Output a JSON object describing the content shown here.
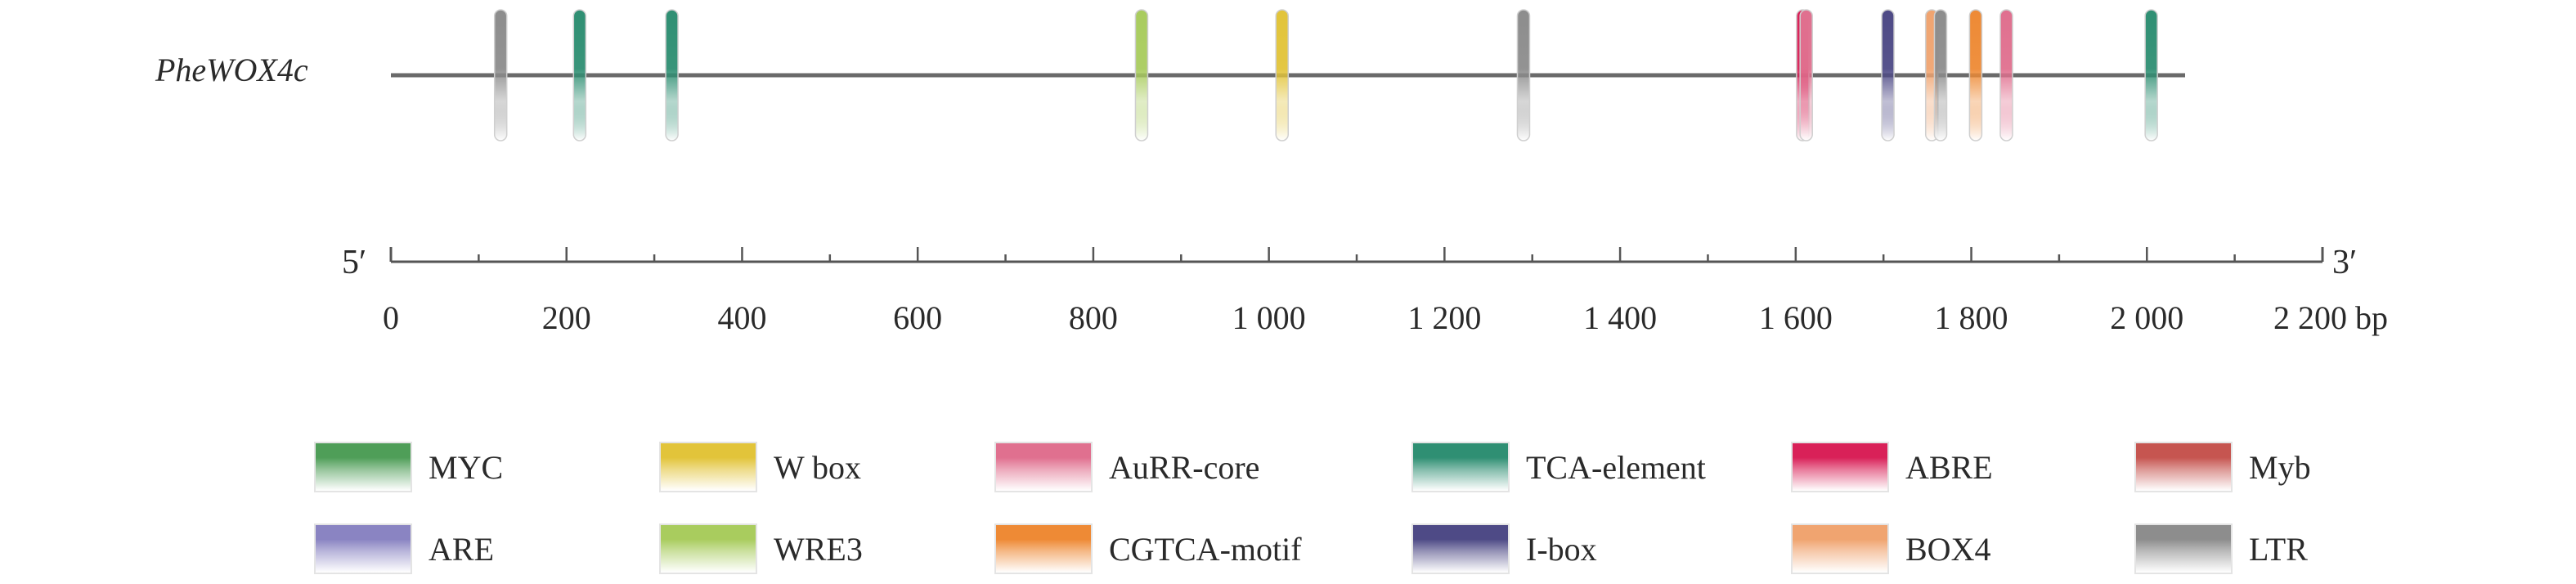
{
  "gene": {
    "name": "PheWOX4c"
  },
  "axis": {
    "five_prime": "5′",
    "three_prime": "3′",
    "min": 0,
    "max": 2200,
    "tick_step": 100,
    "tick_labels": [
      "0",
      "200",
      "400",
      "600",
      "800",
      "1 000",
      "1 200",
      "1 400",
      "1 600",
      "1 800",
      "2 000",
      "2 200 bp"
    ],
    "label_values": [
      0,
      200,
      400,
      600,
      800,
      1000,
      1200,
      1400,
      1600,
      1800,
      2000,
      2200
    ]
  },
  "chart_data": {
    "type": "gene-element-map",
    "sequence_length": 2050,
    "elements": [
      {
        "type": "LTR",
        "position": 125
      },
      {
        "type": "TCA-element",
        "position": 215
      },
      {
        "type": "TCA-element",
        "position": 320
      },
      {
        "type": "WRE3",
        "position": 855
      },
      {
        "type": "W box",
        "position": 1015
      },
      {
        "type": "LTR",
        "position": 1290
      },
      {
        "type": "ABRE",
        "position": 1608
      },
      {
        "type": "AuRR-core",
        "position": 1612
      },
      {
        "type": "I-box",
        "position": 1705
      },
      {
        "type": "BOX4",
        "position": 1755
      },
      {
        "type": "LTR",
        "position": 1765
      },
      {
        "type": "CGTCA-motif",
        "position": 1805
      },
      {
        "type": "AuRR-core",
        "position": 1840
      },
      {
        "type": "TCA-element",
        "position": 2005
      }
    ]
  },
  "legend": [
    {
      "name": "MYC",
      "color": "#4f9e58"
    },
    {
      "name": "W box",
      "color": "#e2c43a"
    },
    {
      "name": "AuRR-core",
      "color": "#e0708f"
    },
    {
      "name": "TCA-element",
      "color": "#2f8f73"
    },
    {
      "name": "ABRE",
      "color": "#d92158"
    },
    {
      "name": "Myb",
      "color": "#c65550"
    },
    {
      "name": "ARE",
      "color": "#8a84c2"
    },
    {
      "name": "WRE3",
      "color": "#a9cc5e"
    },
    {
      "name": "CGTCA-motif",
      "color": "#ee8a35"
    },
    {
      "name": "I-box",
      "color": "#4e4a86"
    },
    {
      "name": "BOX4",
      "color": "#f0a470"
    },
    {
      "name": "LTR",
      "color": "#8d8d8d"
    }
  ]
}
